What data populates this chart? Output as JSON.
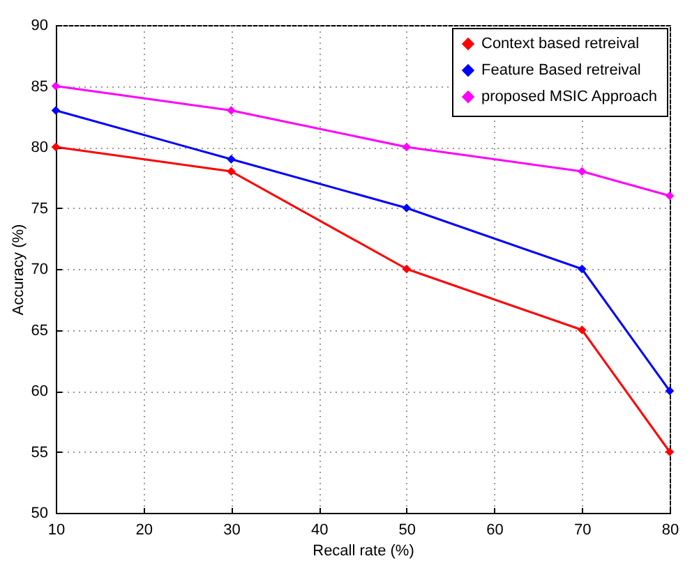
{
  "chart_data": {
    "type": "line",
    "xlabel": "Recall rate (%)",
    "ylabel": "Accuracy (%)",
    "x": [
      10,
      30,
      50,
      70,
      80
    ],
    "series": [
      {
        "name": "Context based retreival",
        "color": "#ff0000",
        "values": [
          80,
          78,
          70,
          65,
          55
        ]
      },
      {
        "name": "Feature Based retreival",
        "color": "#0000ff",
        "values": [
          83,
          79,
          75,
          70,
          60
        ]
      },
      {
        "name": "proposed MSIC Approach",
        "color": "#ff00ff",
        "values": [
          85,
          83,
          80,
          78,
          76
        ]
      }
    ],
    "xlim": [
      10,
      80
    ],
    "xticks": [
      10,
      20,
      30,
      40,
      50,
      60,
      70,
      80
    ],
    "ylim": [
      50,
      90
    ],
    "yticks": [
      50,
      55,
      60,
      65,
      70,
      75,
      80,
      85,
      90
    ],
    "grid": true,
    "legend": "top right",
    "marker": "diamond",
    "line_style": "solid"
  }
}
